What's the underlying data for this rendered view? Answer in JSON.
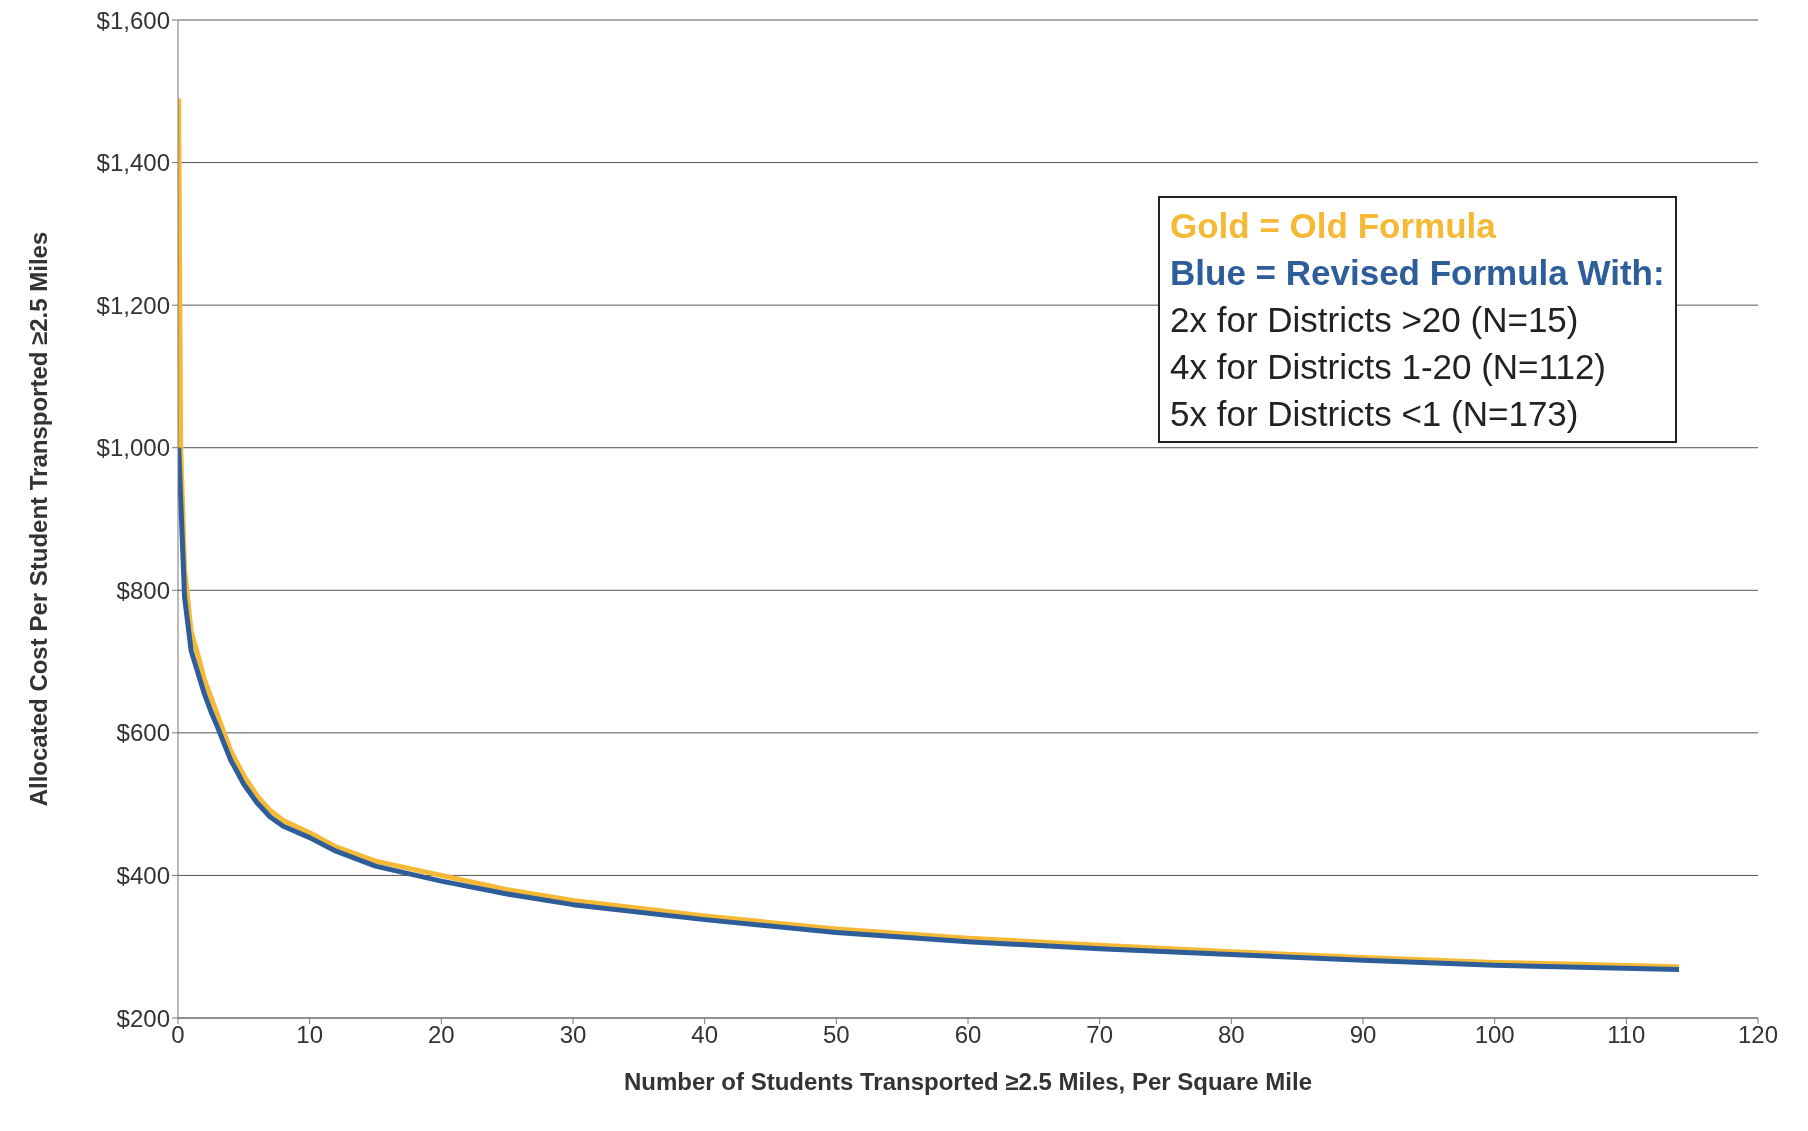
{
  "chart_data": {
    "type": "line",
    "xlabel": "Number of Students Transported ≥2.5 Miles, Per Square Mile",
    "ylabel": "Allocated Cost Per Student Transported ≥2.5 Miles",
    "series": [
      {
        "color": "#f5b935",
        "x": [
          0.05,
          0.2,
          0.5,
          1,
          1.5,
          2,
          2.5,
          3,
          4,
          5,
          6,
          7,
          8,
          10,
          12,
          15,
          20,
          25,
          30,
          40,
          50,
          60,
          70,
          80,
          90,
          100,
          114
        ],
        "values": [
          1490,
          1005,
          830,
          742,
          710,
          675,
          650,
          625,
          575,
          540,
          512,
          491,
          477,
          460,
          440,
          420,
          400,
          380,
          365,
          343,
          325,
          312,
          302,
          293,
          285,
          278,
          272
        ]
      },
      {
        "color": "#2e5e9a",
        "x": [
          0.05,
          0.2,
          0.5,
          1,
          1.5,
          2,
          2.5,
          3,
          4,
          5,
          6,
          7,
          8,
          10,
          12,
          15,
          20,
          25,
          30,
          40,
          50,
          60,
          70,
          80,
          90,
          100,
          114
        ],
        "values": [
          1000,
          930,
          790,
          715,
          685,
          655,
          630,
          608,
          562,
          528,
          502,
          482,
          469,
          453,
          434,
          413,
          392,
          374,
          359,
          338,
          320,
          307,
          297,
          289,
          281,
          274,
          268
        ]
      }
    ],
    "xlim": [
      0,
      120
    ],
    "xticks": [
      0,
      10,
      20,
      30,
      40,
      50,
      60,
      70,
      80,
      90,
      100,
      110,
      120
    ],
    "ylim": [
      200,
      1600
    ],
    "yticks": [
      {
        "value": 200,
        "label": "$200"
      },
      {
        "value": 400,
        "label": "$400"
      },
      {
        "value": 600,
        "label": "$600"
      },
      {
        "value": 800,
        "label": "$800"
      },
      {
        "value": 1000,
        "label": "$1,000"
      },
      {
        "value": 1200,
        "label": "$1,200"
      },
      {
        "value": 1400,
        "label": "$1,400"
      },
      {
        "value": 1600,
        "label": "$1,600"
      }
    ],
    "grid": "y",
    "marker": "none",
    "line_style": "solid",
    "annotations": [
      "Gold = Old Formula",
      "Blue = Revised Formula With:",
      "2x for Districts >20 (N=15)",
      "4x for Districts 1-20 (N=112)",
      "5x for Districts <1 (N=173)"
    ]
  }
}
